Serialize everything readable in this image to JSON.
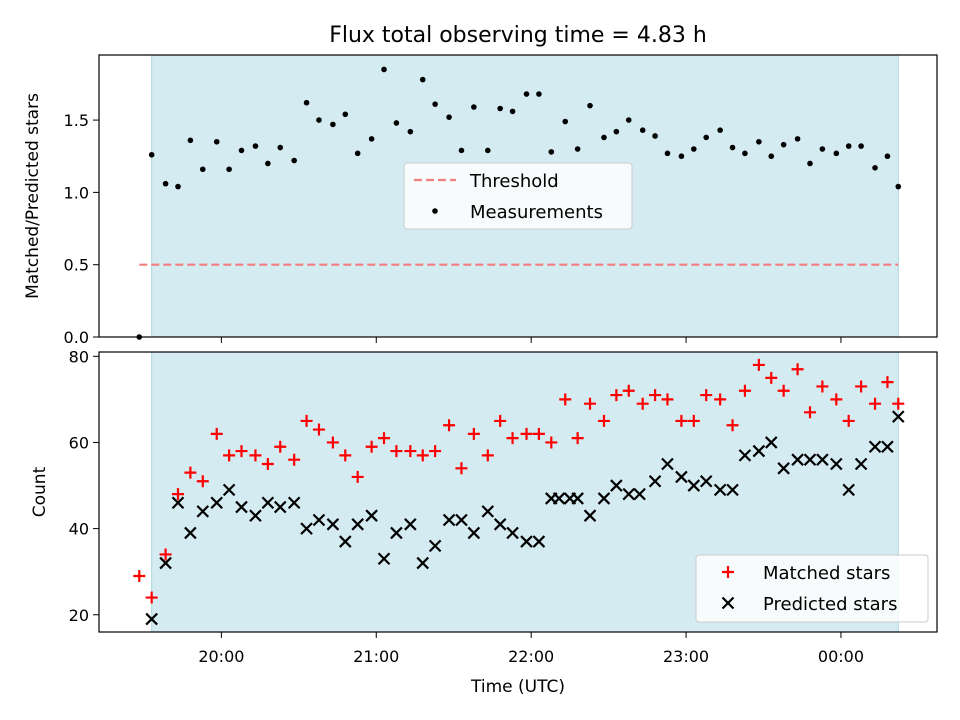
{
  "chart_data": [
    {
      "type": "scatter",
      "title": "Flux total observing time = 4.83 h",
      "xlabel": "",
      "ylabel": "Matched/Predicted stars",
      "ylim": [
        0,
        1.95
      ],
      "yticks": [
        "0.0",
        "0.5",
        "1.0",
        "1.5"
      ],
      "ytick_values": [
        0,
        0.5,
        1.0,
        1.5
      ],
      "xlim_hours": [
        19.21,
        24.62
      ],
      "observing_window_hours": [
        19.55,
        24.37
      ],
      "window_color": "#d4ebf1",
      "legend_position": "center",
      "threshold": {
        "name": "Threshold",
        "value": 0.5,
        "x_range_hours": [
          19.47,
          24.37
        ],
        "color": "#f08080"
      },
      "series": [
        {
          "name": "Measurements",
          "color": "#000000",
          "x_hours": [
            19.47,
            19.55,
            19.64,
            19.72,
            19.8,
            19.88,
            19.97,
            20.05,
            20.13,
            20.22,
            20.3,
            20.38,
            20.47,
            20.55,
            20.63,
            20.72,
            20.8,
            20.88,
            20.97,
            21.05,
            21.13,
            21.22,
            21.3,
            21.38,
            21.47,
            21.55,
            21.63,
            21.72,
            21.8,
            21.88,
            21.97,
            22.05,
            22.13,
            22.22,
            22.3,
            22.38,
            22.47,
            22.55,
            22.63,
            22.72,
            22.8,
            22.88,
            22.97,
            23.05,
            23.13,
            23.22,
            23.3,
            23.38,
            23.47,
            23.55,
            23.63,
            23.72,
            23.8,
            23.88,
            23.97,
            24.05,
            24.13,
            24.22,
            24.3,
            24.37
          ],
          "y": [
            0.0,
            1.26,
            1.06,
            1.04,
            1.36,
            1.16,
            1.35,
            1.16,
            1.29,
            1.32,
            1.2,
            1.31,
            1.22,
            1.62,
            1.5,
            1.47,
            1.54,
            1.27,
            1.37,
            1.85,
            1.48,
            1.42,
            1.78,
            1.61,
            1.52,
            1.29,
            1.59,
            1.29,
            1.58,
            1.56,
            1.68,
            1.68,
            1.28,
            1.49,
            1.3,
            1.6,
            1.38,
            1.42,
            1.5,
            1.43,
            1.39,
            1.27,
            1.25,
            1.3,
            1.38,
            1.43,
            1.31,
            1.27,
            1.35,
            1.25,
            1.33,
            1.37,
            1.2,
            1.3,
            1.27,
            1.32,
            1.32,
            1.17,
            1.25,
            1.04
          ]
        }
      ]
    },
    {
      "type": "scatter",
      "title": "",
      "xlabel": "Time (UTC)",
      "ylabel": "Count",
      "ylim": [
        16,
        81
      ],
      "yticks": [
        "20",
        "40",
        "60",
        "80"
      ],
      "ytick_values": [
        20,
        40,
        60,
        80
      ],
      "xlim_hours": [
        19.21,
        24.62
      ],
      "xticks": [
        "20:00",
        "21:00",
        "22:00",
        "23:00",
        "00:00"
      ],
      "xtick_hours": [
        20,
        21,
        22,
        23,
        24
      ],
      "observing_window_hours": [
        19.55,
        24.37
      ],
      "window_color": "#d4ebf1",
      "legend_position": "lower right",
      "series": [
        {
          "name": "Matched stars",
          "marker": "+",
          "color": "#ff0000",
          "x_hours": [
            19.47,
            19.55,
            19.64,
            19.72,
            19.8,
            19.88,
            19.97,
            20.05,
            20.13,
            20.22,
            20.3,
            20.38,
            20.47,
            20.55,
            20.63,
            20.72,
            20.8,
            20.88,
            20.97,
            21.05,
            21.13,
            21.22,
            21.3,
            21.38,
            21.47,
            21.55,
            21.63,
            21.72,
            21.8,
            21.88,
            21.97,
            22.05,
            22.13,
            22.22,
            22.3,
            22.38,
            22.47,
            22.55,
            22.63,
            22.72,
            22.8,
            22.88,
            22.97,
            23.05,
            23.13,
            23.22,
            23.3,
            23.38,
            23.47,
            23.55,
            23.63,
            23.72,
            23.8,
            23.88,
            23.97,
            24.05,
            24.13,
            24.22,
            24.3,
            24.37
          ],
          "y": [
            29,
            24,
            34,
            48,
            53,
            51,
            62,
            57,
            58,
            57,
            55,
            59,
            56,
            65,
            63,
            60,
            57,
            52,
            59,
            61,
            58,
            58,
            57,
            58,
            64,
            54,
            62,
            57,
            65,
            61,
            62,
            62,
            60,
            70,
            61,
            69,
            65,
            71,
            72,
            69,
            71,
            70,
            65,
            65,
            71,
            70,
            64,
            72,
            78,
            75,
            72,
            77,
            67,
            73,
            70,
            65,
            73,
            69,
            74,
            69
          ]
        },
        {
          "name": "Predicted stars",
          "marker": "x",
          "color": "#000000",
          "x_hours": [
            19.55,
            19.64,
            19.72,
            19.8,
            19.88,
            19.97,
            20.05,
            20.13,
            20.22,
            20.3,
            20.38,
            20.47,
            20.55,
            20.63,
            20.72,
            20.8,
            20.88,
            20.97,
            21.05,
            21.13,
            21.22,
            21.3,
            21.38,
            21.47,
            21.55,
            21.63,
            21.72,
            21.8,
            21.88,
            21.97,
            22.05,
            22.13,
            22.18,
            22.25,
            22.3,
            22.38,
            22.47,
            22.55,
            22.63,
            22.7,
            22.8,
            22.88,
            22.97,
            23.05,
            23.13,
            23.22,
            23.3,
            23.38,
            23.47,
            23.55,
            23.63,
            23.72,
            23.8,
            23.88,
            23.97,
            24.05,
            24.13,
            24.22,
            24.3,
            24.37
          ],
          "y": [
            19,
            32,
            46,
            39,
            44,
            46,
            49,
            45,
            43,
            46,
            45,
            46,
            40,
            42,
            41,
            37,
            41,
            43,
            33,
            39,
            41,
            32,
            36,
            42,
            42,
            39,
            44,
            41,
            39,
            37,
            37,
            47,
            47,
            47,
            47,
            43,
            47,
            50,
            48,
            48,
            51,
            55,
            52,
            50,
            51,
            49,
            49,
            57,
            58,
            60,
            54,
            56,
            56,
            56,
            55,
            49,
            55,
            59,
            59,
            66
          ]
        }
      ]
    }
  ]
}
